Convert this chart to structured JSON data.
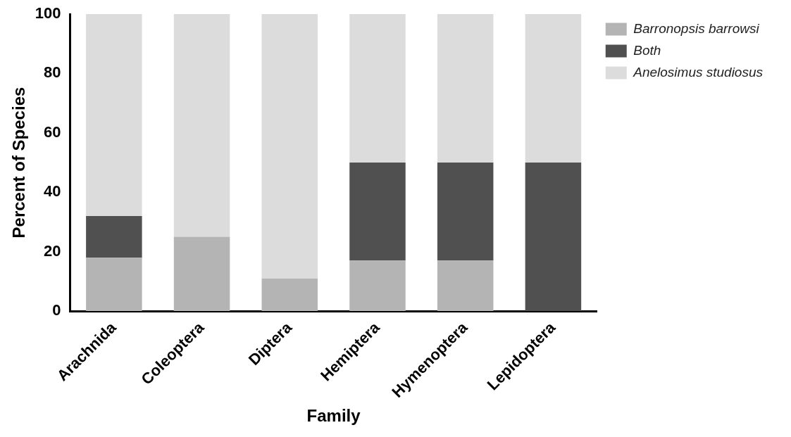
{
  "chart_data": {
    "type": "bar",
    "stacked": true,
    "xlabel": "Family",
    "ylabel": "Percent of Species",
    "categories": [
      "Arachnida",
      "Coleoptera",
      "Diptera",
      "Hemiptera",
      "Hymenoptera",
      "Lepidoptera"
    ],
    "series": [
      {
        "name": "Barronopsis barrowsi",
        "color": "#b4b4b4",
        "values": [
          18,
          25,
          11,
          17,
          17,
          0
        ]
      },
      {
        "name": "Both",
        "color": "#505050",
        "values": [
          14,
          0,
          0,
          33,
          33,
          50
        ]
      },
      {
        "name": "Anelosimus studiosus",
        "color": "#dcdcdc",
        "values": [
          68,
          75,
          89,
          50,
          50,
          50
        ]
      }
    ],
    "ylim": [
      0,
      100
    ],
    "yticks": [
      0,
      20,
      40,
      60,
      80,
      100
    ],
    "grid": false,
    "legend": "top right"
  }
}
